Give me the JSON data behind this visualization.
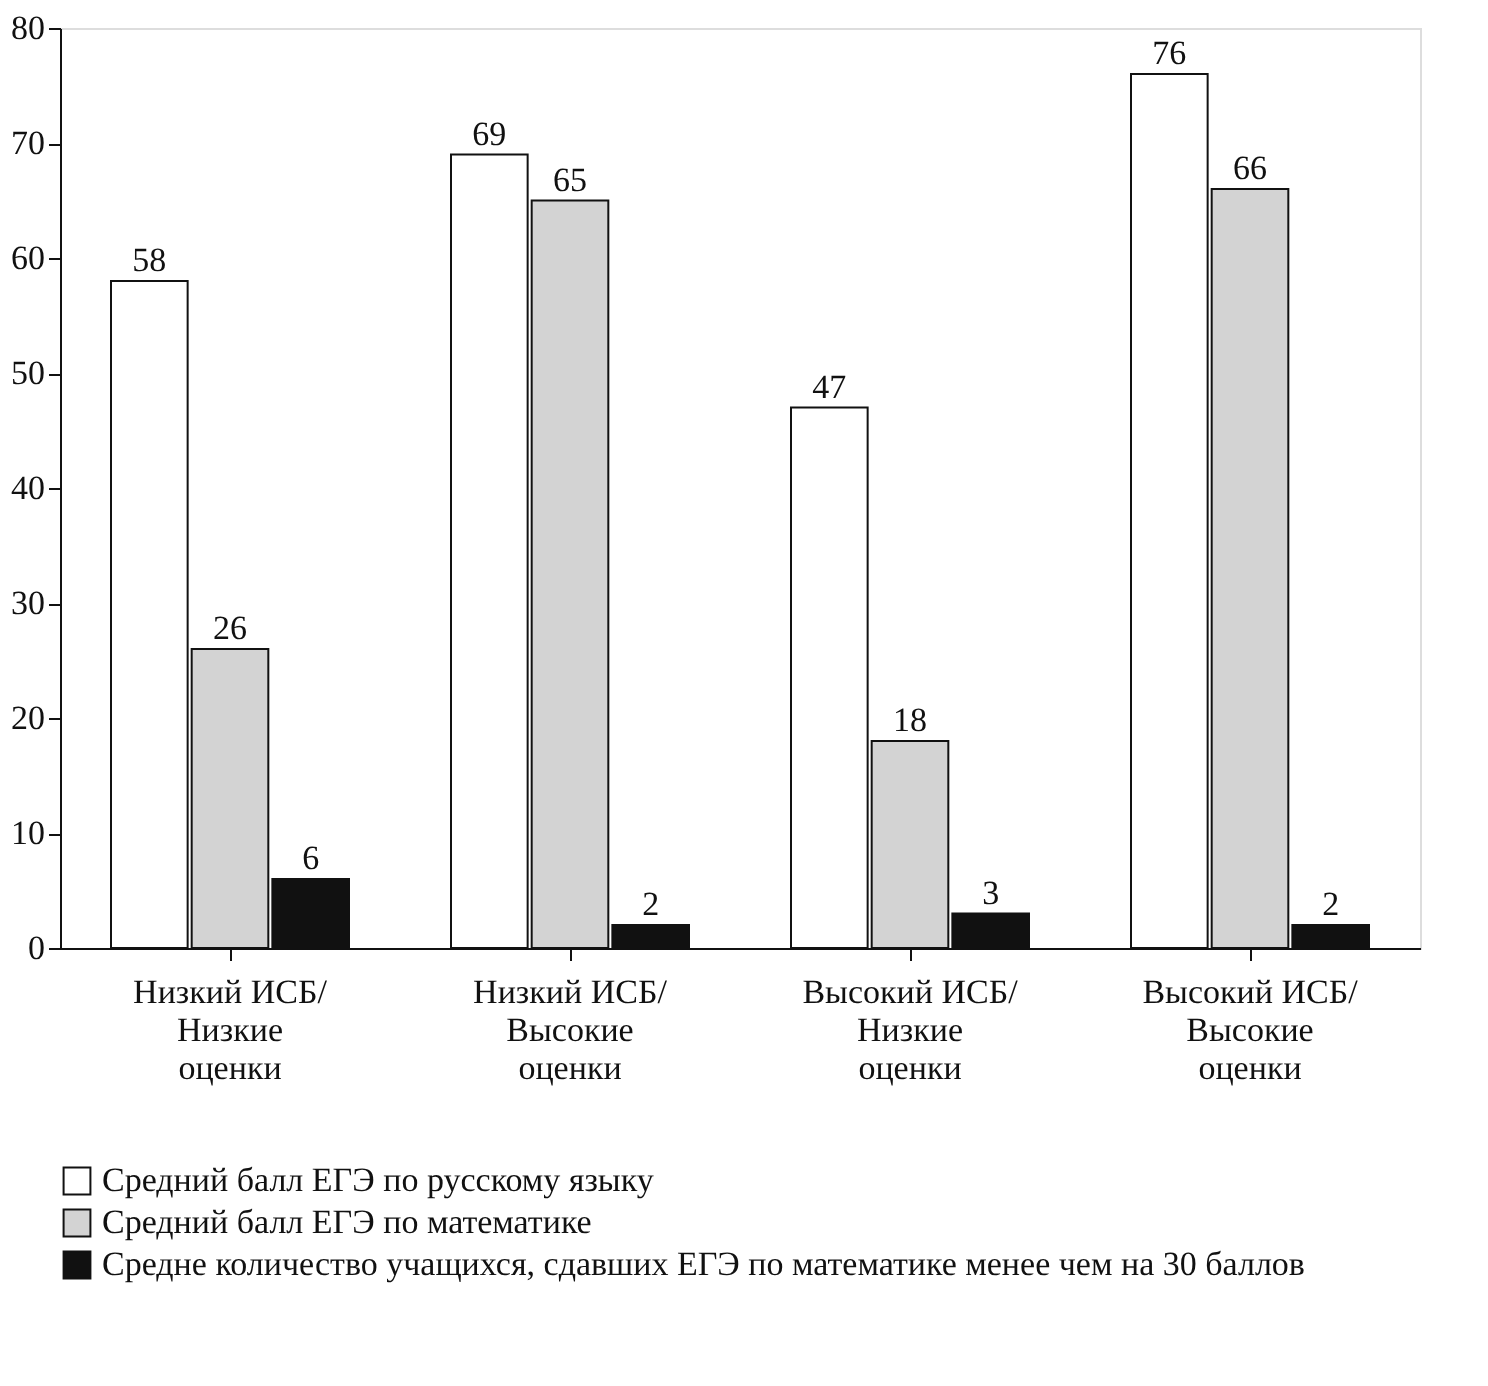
{
  "chart_data": {
    "type": "bar",
    "categories": [
      "Низкий ИСБ/\nНизкие\nоценки",
      "Низкий ИСБ/\nВысокие\nоценки",
      "Высокий ИСБ/\nНизкие\nоценки",
      "Высокий ИСБ/\nВысокие\nоценки"
    ],
    "series": [
      {
        "name": "Средний балл ЕГЭ по русскому языку",
        "color": "#ffffff",
        "values": [
          58,
          69,
          47,
          76
        ]
      },
      {
        "name": "Средний балл ЕГЭ по математике",
        "color": "#d3d3d3",
        "values": [
          26,
          65,
          18,
          66
        ]
      },
      {
        "name": "Средне количество учащихся, сдавших ЕГЭ по математике менее чем на 30 баллов",
        "color": "#111111",
        "values": [
          6,
          2,
          3,
          2
        ]
      }
    ],
    "ylim": [
      0,
      80
    ],
    "yticks": [
      0,
      10,
      20,
      30,
      40,
      50,
      60,
      70,
      80
    ],
    "data_labels": true,
    "grid": false,
    "legend": "bottom"
  }
}
